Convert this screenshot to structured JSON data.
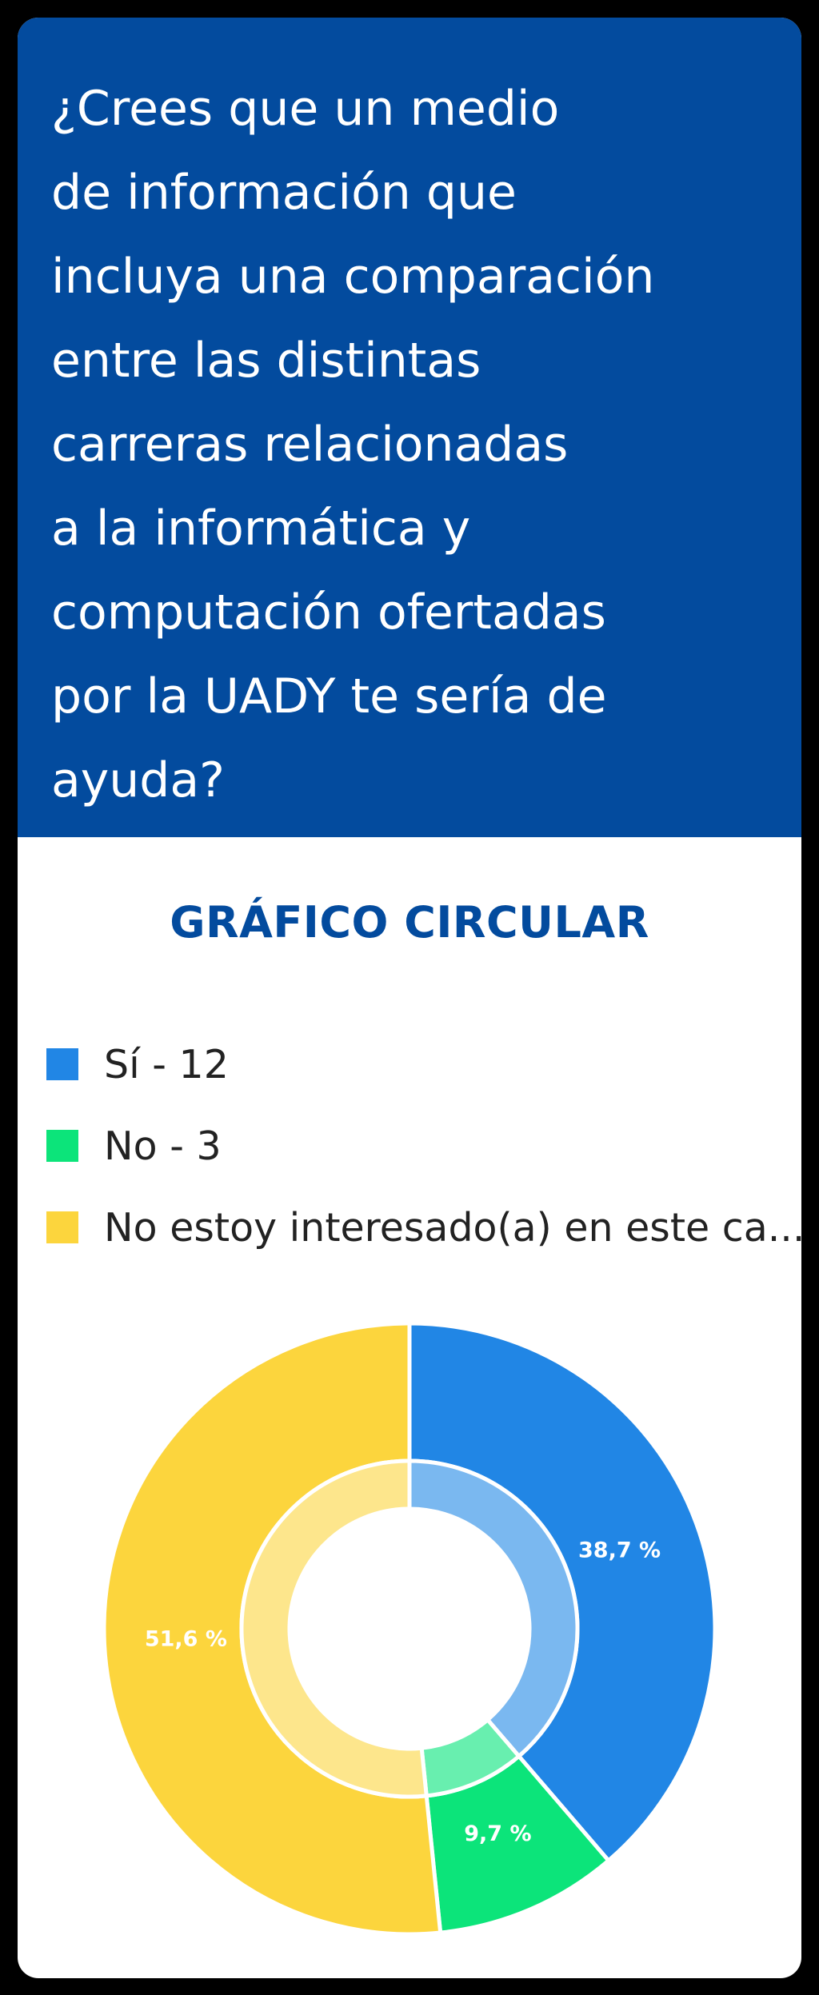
{
  "question": {
    "text": "¿Crees que un medio\nde información que\nincluya una comparación\nentre las distintas\ncarreras relacionadas\na la informática y\ncomputación ofertadas\npor la UADY te sería de\nayuda?"
  },
  "chart_data": {
    "type": "pie",
    "variant": "donut",
    "title": "GRÁFICO CIRCULAR",
    "legend_position": "top",
    "series": [
      {
        "name": "Sí",
        "value": 12,
        "legend_label": "Sí - 12",
        "percent": 38.7,
        "percent_label": "38,7 %",
        "color": "#2186e5",
        "inner_color": "#7ab8f0"
      },
      {
        "name": "No",
        "value": 3,
        "legend_label": "No - 3",
        "percent": 9.7,
        "percent_label": "9,7 %",
        "color": "#0ce47a",
        "inner_color": "#68efaf"
      },
      {
        "name": "No estoy interesado(a) en este ca...",
        "value": 16,
        "legend_label": "No estoy interesado(a) en este ca...",
        "percent": 51.6,
        "percent_label": "51,6 %",
        "color": "#fcd53d",
        "inner_color": "#fde68c"
      }
    ]
  },
  "colors": {
    "header_background": "#034b9e",
    "title_color": "#034b9e",
    "page_background": "#000000",
    "card_background": "#ffffff"
  }
}
